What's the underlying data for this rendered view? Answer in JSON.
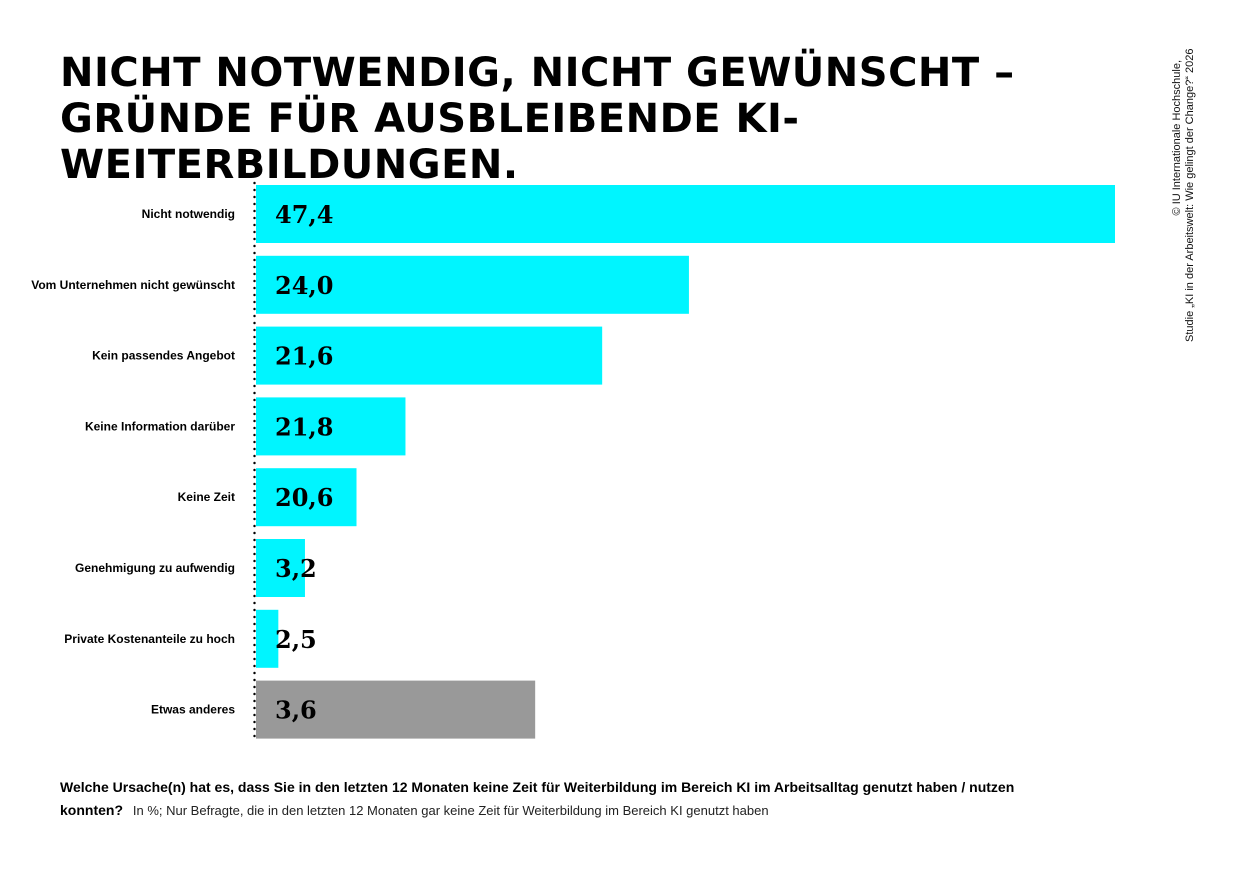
{
  "title": "NICHT NOTWENDIG, NICHT GEWÜNSCHT – GRÜNDE FÜR AUSBLEIBENDE KI-WEITERBILDUNGEN.",
  "credit": {
    "line1": "© IU Internationale Hochschule,",
    "line2": "Studie „KI in der Arbeitswelt: Wie gelingt der Change?“ 2026"
  },
  "question": {
    "text": "Welche Ursache(n) hat es, dass Sie in den letzten 12 Monaten keine Zeit für Weiterbildung im Bereich KI im Arbeitsalltag genutzt haben / nutzen konnten?",
    "note": "In %; Nur Befragte, die in den letzten 12 Monaten gar keine Zeit für Weiterbildung im Bereich KI genutzt haben"
  },
  "colors": {
    "accent": "#00F5FF",
    "other": "#999999",
    "text": "#000000"
  },
  "chart_data": {
    "type": "bar",
    "orientation": "horizontal",
    "categories": [
      "Nicht notwendig",
      "Vom Unternehmen nicht gewünscht",
      "Kein passendes Angebot",
      "Keine Information darüber",
      "Keine Zeit",
      "Genehmigung zu aufwendig",
      "Private Kostenanteile zu hoch",
      "Etwas anderes"
    ],
    "values": [
      47.4,
      24.0,
      21.6,
      21.8,
      20.6,
      3.2,
      2.5,
      3.6
    ],
    "labels": [
      "47,4",
      "24,0",
      "21,6",
      "21,8",
      "20,6",
      "3,2",
      "2,5",
      "3,6"
    ],
    "display_fraction": [
      1.0,
      0.504,
      0.403,
      0.174,
      0.117,
      0.057,
      0.026,
      0.325
    ],
    "bar_colors": [
      "accent",
      "accent",
      "accent",
      "accent",
      "accent",
      "accent",
      "accent",
      "other"
    ],
    "unit": "%",
    "grid": false,
    "legend": "none"
  }
}
